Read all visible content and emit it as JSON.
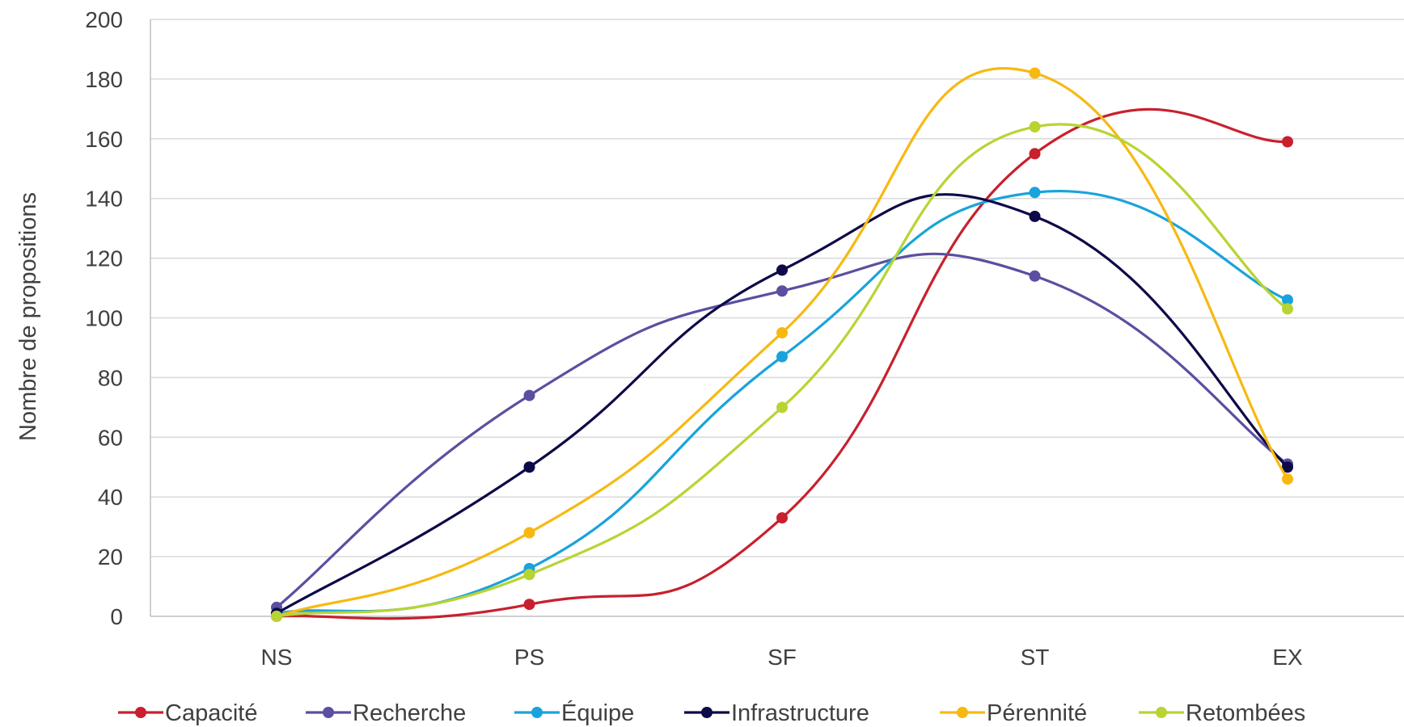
{
  "chart_data": {
    "type": "line",
    "smooth": true,
    "categories": [
      "NS",
      "PS",
      "SF",
      "ST",
      "EX"
    ],
    "ylabel": "Nombre de propositions",
    "xlabel": "",
    "ylim": [
      0,
      200
    ],
    "yticks": [
      0,
      20,
      40,
      60,
      80,
      100,
      120,
      140,
      160,
      180,
      200
    ],
    "grid": "horizontal",
    "legend_position": "bottom",
    "series": [
      {
        "name": "Capacité",
        "color": "#C8202E",
        "values": [
          0,
          4,
          33,
          155,
          159
        ]
      },
      {
        "name": "Recherche",
        "color": "#5A4FA0",
        "values": [
          3,
          74,
          109,
          114,
          51
        ]
      },
      {
        "name": "Équipe",
        "color": "#1AA3DB",
        "values": [
          1,
          16,
          87,
          142,
          106
        ]
      },
      {
        "name": "Infrastructure",
        "color": "#0D0A47",
        "values": [
          1,
          50,
          116,
          134,
          50
        ]
      },
      {
        "name": "Pérennité",
        "color": "#F7B911",
        "values": [
          0,
          28,
          95,
          182,
          46
        ]
      },
      {
        "name": "Retombées",
        "color": "#B8D433",
        "values": [
          0,
          14,
          70,
          164,
          103
        ]
      }
    ]
  }
}
